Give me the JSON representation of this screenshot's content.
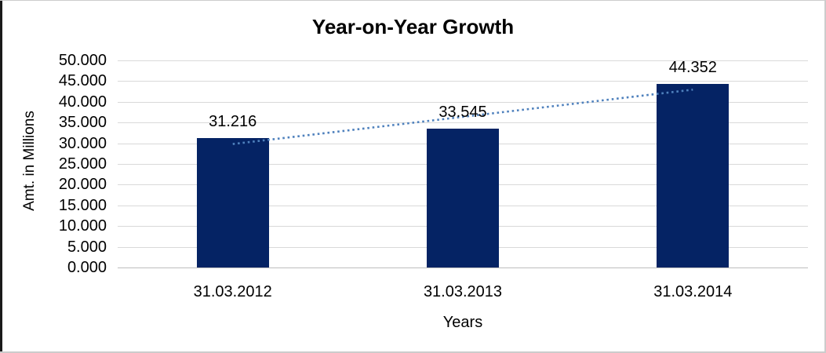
{
  "chart_data": {
    "type": "bar",
    "title": "Year-on-Year Growth",
    "xlabel": "Years",
    "ylabel": "Amt. in Millions",
    "categories": [
      "31.03.2012",
      "31.03.2013",
      "31.03.2014"
    ],
    "values": [
      31.216,
      33.545,
      44.352
    ],
    "data_labels": [
      "31.216",
      "33.545",
      "44.352"
    ],
    "ylim": [
      0,
      50
    ],
    "ytick_step": 5,
    "ytick_labels": [
      "50.000",
      "45.000",
      "40.000",
      "35.000",
      "30.000",
      "25.000",
      "20.000",
      "15.000",
      "10.000",
      "5.000",
      "0.000"
    ],
    "grid": true,
    "legend": "none",
    "trendline": {
      "type": "linear",
      "style": "dotted"
    },
    "colors": {
      "bar": "#052364",
      "trendline": "#4F81BD",
      "gridline": "#D9D9D9",
      "axis_line": "#BDBDBD",
      "text": "#000000",
      "border_dark": "#1A1A1A",
      "border_light": "#CCCCCC"
    }
  }
}
